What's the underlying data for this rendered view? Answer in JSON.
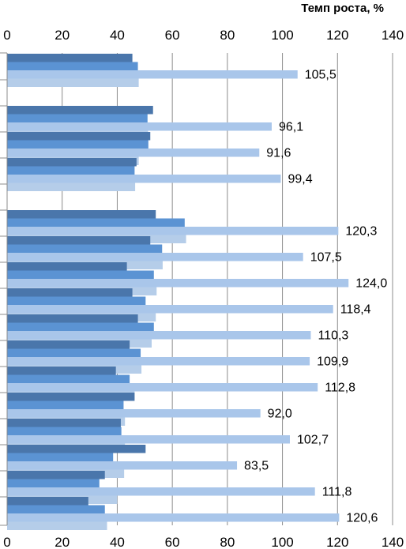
{
  "chart_data": {
    "type": "bar",
    "orientation": "horizontal",
    "title": "Темп роста, %",
    "xlim": [
      0,
      140
    ],
    "x_ticks": [
      "0",
      "20",
      "40",
      "60",
      "80",
      "100",
      "120",
      "140"
    ],
    "grid": true,
    "bar_colors": [
      "#4a76ab",
      "#5b93d3",
      "#a9c6ea",
      "#b5cde9"
    ],
    "groups": [
      {
        "values": [
          45.5,
          47.5,
          105.5,
          47.8
        ],
        "label": "105,5"
      },
      {
        "values": [
          53.0,
          51.0,
          96.1,
          51.2
        ],
        "label": "96,1"
      },
      {
        "values": [
          52.0,
          51.3,
          91.6,
          47.8
        ],
        "label": "91,6"
      },
      {
        "values": [
          47.0,
          46.3,
          99.4,
          46.5
        ],
        "label": "99,4"
      },
      {
        "values": [
          54.0,
          64.5,
          120.3,
          65.0
        ],
        "label": "120,3"
      },
      {
        "values": [
          52.0,
          56.3,
          107.5,
          56.5
        ],
        "label": "107,5"
      },
      {
        "values": [
          43.5,
          53.3,
          124.0,
          54.3
        ],
        "label": "124,0"
      },
      {
        "values": [
          45.5,
          50.3,
          118.4,
          54.0
        ],
        "label": "118,4"
      },
      {
        "values": [
          47.5,
          53.3,
          110.3,
          52.5
        ],
        "label": "110,3"
      },
      {
        "values": [
          44.5,
          48.5,
          109.9,
          48.8
        ],
        "label": "109,9"
      },
      {
        "values": [
          39.5,
          44.5,
          112.8,
          46.3
        ],
        "label": "112,8"
      },
      {
        "values": [
          46.3,
          42.3,
          92.0,
          42.8
        ],
        "label": "92,0"
      },
      {
        "values": [
          41.3,
          41.5,
          102.7,
          42.8
        ],
        "label": "102,7"
      },
      {
        "values": [
          50.3,
          38.5,
          83.5,
          42.5
        ],
        "label": "83,5"
      },
      {
        "values": [
          35.5,
          33.5,
          111.8,
          40.0
        ],
        "label": "111,8"
      },
      {
        "values": [
          29.5,
          35.5,
          120.6,
          36.3
        ],
        "label": "120,6"
      }
    ]
  }
}
